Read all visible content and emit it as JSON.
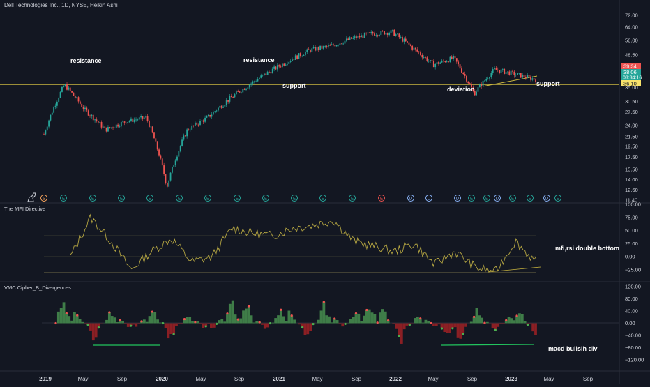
{
  "header": {
    "title": "Dell Technologies Inc., 1D, NYSE, Heikin Ashi"
  },
  "colors": {
    "up": "#26a69a",
    "down": "#ef5350",
    "bg": "#131722",
    "text": "#d1d4dc",
    "grid": "#2a2e39",
    "osc": "#b5a642",
    "hline": "#c9b53f",
    "green_line": "#22c55e"
  },
  "price_scale": {
    "ticks": [
      "72.00",
      "64.00",
      "56.00",
      "48.50",
      "42.50",
      "35.00",
      "30.50",
      "27.50",
      "24.00",
      "21.50",
      "19.50",
      "17.50",
      "15.50",
      "14.00",
      "12.60",
      "11.40"
    ]
  },
  "price_badges": {
    "red": "39.34",
    "green": "38.06",
    "timer": "03:34:16",
    "yellow": "36.10"
  },
  "annotations": [
    {
      "text": "resistance"
    },
    {
      "text": "resistance"
    },
    {
      "text": "support"
    },
    {
      "text": "deviation"
    },
    {
      "text": "support"
    }
  ],
  "event_markers": [
    "S",
    "E",
    "E",
    "E",
    "E",
    "E",
    "E",
    "E",
    "E",
    "E",
    "E",
    "E",
    "E",
    "D",
    "D",
    "D",
    "E",
    "E",
    "D",
    "E",
    "E",
    "D",
    "E",
    "D",
    "E"
  ],
  "mfi_panel": {
    "title": "The MFI Directive",
    "ticks": [
      "100.00",
      "75.00",
      "50.00",
      "25.00",
      "0.00",
      "−25.00"
    ],
    "note": "mfi,rsi double bottom"
  },
  "vmc_panel": {
    "title": "VMC Cipher_B_Divergences",
    "ticks": [
      "120.00",
      "80.00",
      "40.00",
      "0.00",
      "−40.00",
      "−80.00",
      "−120.00"
    ],
    "note": "macd bullsih div"
  },
  "time_axis": {
    "labels": [
      "2019",
      "May",
      "Sep",
      "2020",
      "May",
      "Sep",
      "2021",
      "May",
      "Sep",
      "2022",
      "May",
      "Sep",
      "2023",
      "May",
      "Sep"
    ]
  },
  "chart_data": [
    {
      "type": "candlestick",
      "subtitle": "Heikin Ashi, 1D",
      "y_scale": "log",
      "x": [
        "2019-01",
        "2019-05",
        "2019-07",
        "2019-09",
        "2019-11",
        "2020-01",
        "2020-03",
        "2020-05",
        "2020-07",
        "2020-09",
        "2020-11",
        "2021-01",
        "2021-03",
        "2021-05",
        "2021-07",
        "2021-09",
        "2021-11",
        "2022-01",
        "2022-03",
        "2022-05",
        "2022-07",
        "2022-09",
        "2022-11",
        "2023-01",
        "2023-03"
      ],
      "close": [
        22,
        36,
        28,
        23,
        25,
        26,
        13,
        23,
        26,
        31,
        36,
        41,
        46,
        51,
        53,
        57,
        60,
        61,
        52,
        44,
        47,
        33,
        42,
        40,
        38
      ],
      "horizontal_line": 36.1
    },
    {
      "type": "line",
      "series": [
        {
          "name": "",
          "values": [
            0,
            75,
            30,
            -25,
            10,
            35,
            -10,
            0,
            55,
            45,
            40,
            55,
            60,
            70,
            30,
            20,
            10,
            25,
            -15,
            10,
            -20,
            -30,
            30,
            -10
          ]
        }
      ],
      "ylim": [
        -40,
        100
      ],
      "reference_lines": [
        40,
        0,
        -30
      ]
    },
    {
      "type": "bar",
      "series": [
        {
          "name": "",
          "values": [
            70,
            55,
            -60,
            60,
            -40,
            70,
            -70,
            50,
            -50,
            75,
            60,
            -30,
            80,
            -60,
            70,
            -20,
            85,
            60,
            -70,
            50,
            -40,
            -75,
            65,
            -40,
            70,
            -70
          ]
        }
      ],
      "ylim": [
        -120,
        120
      ]
    }
  ]
}
